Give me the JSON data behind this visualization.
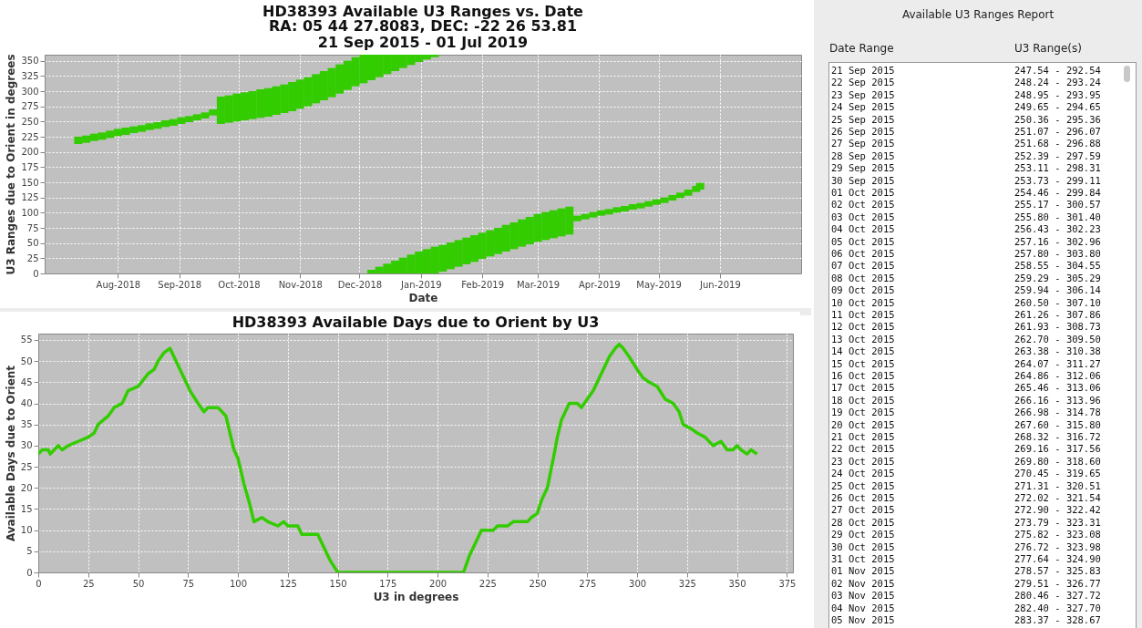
{
  "chart_data": [
    {
      "type": "bar",
      "title": "HD38393 Available U3 Ranges vs. Date",
      "subtitle": "RA: 05 44 27.8083,  DEC: -22 26 53.81\n21 Sep 2015 - 01 Jul 2019",
      "xlabel": "Date",
      "ylabel": "U3 Ranges due to Orient in degrees",
      "xlim": [
        "2018-06-25",
        "2019-07-12"
      ],
      "xticks": [
        {
          "value": "2018-08-01",
          "label": "Aug-2018"
        },
        {
          "value": "2018-09-01",
          "label": "Sep-2018"
        },
        {
          "value": "2018-10-01",
          "label": "Oct-2018"
        },
        {
          "value": "2018-11-01",
          "label": "Nov-2018"
        },
        {
          "value": "2018-12-01",
          "label": "Dec-2018"
        },
        {
          "value": "2019-01-01",
          "label": "Jan-2019"
        },
        {
          "value": "2019-02-01",
          "label": "Feb-2019"
        },
        {
          "value": "2019-03-01",
          "label": "Mar-2019"
        },
        {
          "value": "2019-04-01",
          "label": "Apr-2019"
        },
        {
          "value": "2019-05-01",
          "label": "May-2019"
        },
        {
          "value": "2019-06-01",
          "label": "Jun-2019"
        }
      ],
      "ylim": [
        0,
        360
      ],
      "yticks": [
        0,
        25,
        50,
        75,
        100,
        125,
        150,
        175,
        200,
        225,
        250,
        275,
        300,
        325,
        350
      ],
      "grid": true,
      "series": [
        {
          "color": "#33cc00",
          "x": [
            "2018-07-12",
            "2018-07-16",
            "2018-07-20",
            "2018-07-24",
            "2018-07-28",
            "2018-08-01",
            "2018-08-05",
            "2018-08-09",
            "2018-08-13",
            "2018-08-17",
            "2018-08-21",
            "2018-08-25",
            "2018-08-29",
            "2018-09-02",
            "2018-09-06",
            "2018-09-10",
            "2018-09-14",
            "2018-09-18",
            "2018-09-22",
            "2018-09-26",
            "2018-09-30",
            "2018-10-04",
            "2018-10-08",
            "2018-10-12",
            "2018-10-16",
            "2018-10-20",
            "2018-10-24",
            "2018-10-28",
            "2018-11-01",
            "2018-11-05",
            "2018-11-09",
            "2018-11-13",
            "2018-11-17",
            "2018-11-21",
            "2018-11-25",
            "2018-11-29",
            "2018-12-03",
            "2018-12-07",
            "2018-12-11",
            "2018-12-15",
            "2018-12-19",
            "2018-12-23",
            "2018-12-27",
            "2018-12-31",
            "2019-01-04",
            "2019-01-08"
          ],
          "base": [
            213,
            215,
            218,
            220,
            223,
            226,
            228,
            231,
            233,
            236,
            238,
            241,
            243,
            246,
            249,
            252,
            255,
            260,
            246,
            248,
            250,
            252,
            254,
            256,
            258,
            261,
            264,
            267,
            271,
            275,
            280,
            285,
            290,
            296,
            302,
            308,
            313,
            318,
            323,
            328,
            333,
            338,
            343,
            348,
            352,
            356
          ],
          "values": [
            12,
            12,
            12,
            12,
            12,
            12,
            12,
            11,
            11,
            11,
            11,
            11,
            11,
            11,
            10,
            10,
            10,
            10,
            45,
            45,
            46,
            46,
            46,
            47,
            47,
            47,
            47,
            48,
            48,
            48,
            48,
            48,
            48,
            48,
            48,
            48,
            47,
            42,
            37,
            32,
            27,
            22,
            17,
            12,
            8,
            4
          ]
        },
        {
          "color": "#33cc00",
          "x": [
            "2018-12-07",
            "2018-12-11",
            "2018-12-15",
            "2018-12-19",
            "2018-12-23",
            "2018-12-27",
            "2018-12-31",
            "2019-01-04",
            "2019-01-08",
            "2019-01-12",
            "2019-01-16",
            "2019-01-20",
            "2019-01-24",
            "2019-01-28",
            "2019-02-01",
            "2019-02-05",
            "2019-02-09",
            "2019-02-13",
            "2019-02-17",
            "2019-02-21",
            "2019-02-25",
            "2019-03-01",
            "2019-03-05",
            "2019-03-09",
            "2019-03-13",
            "2019-03-17",
            "2019-03-21",
            "2019-03-25",
            "2019-03-29",
            "2019-04-02",
            "2019-04-06",
            "2019-04-10",
            "2019-04-14",
            "2019-04-18",
            "2019-04-22",
            "2019-04-26",
            "2019-04-30",
            "2019-05-04",
            "2019-05-08",
            "2019-05-12",
            "2019-05-16",
            "2019-05-20",
            "2019-05-22"
          ],
          "base": [
            0,
            0,
            0,
            0,
            0,
            0,
            0,
            0,
            0,
            3,
            7,
            11,
            15,
            19,
            24,
            28,
            32,
            36,
            40,
            44,
            48,
            52,
            55,
            58,
            61,
            64,
            86,
            89,
            92,
            95,
            97,
            100,
            102,
            105,
            107,
            110,
            113,
            116,
            120,
            124,
            128,
            134,
            138
          ],
          "values": [
            6,
            11,
            16,
            21,
            26,
            31,
            36,
            40,
            44,
            44,
            44,
            44,
            44,
            44,
            43,
            43,
            43,
            44,
            44,
            45,
            45,
            46,
            46,
            46,
            46,
            46,
            9,
            9,
            9,
            9,
            9,
            9,
            9,
            9,
            9,
            9,
            9,
            9,
            9,
            9,
            10,
            10,
            11
          ]
        }
      ]
    },
    {
      "type": "line",
      "title": "HD38393 Available Days due to Orient by U3",
      "xlabel": "U3 in degrees",
      "ylabel": "Available Days due to Orient",
      "xlim": [
        0,
        378
      ],
      "xticks": [
        0,
        25,
        50,
        75,
        100,
        125,
        150,
        175,
        200,
        225,
        250,
        275,
        300,
        325,
        350,
        375
      ],
      "ylim": [
        0,
        56.5
      ],
      "yticks": [
        0,
        5,
        10,
        15,
        20,
        25,
        30,
        35,
        40,
        45,
        50,
        55
      ],
      "grid": true,
      "series": [
        {
          "color": "#33cc00",
          "x": [
            0,
            2,
            5,
            6,
            8,
            10,
            12,
            15,
            20,
            25,
            28,
            30,
            35,
            38,
            42,
            45,
            50,
            55,
            58,
            60,
            63,
            66,
            68,
            72,
            76,
            80,
            83,
            85,
            90,
            92,
            94,
            96,
            98,
            100,
            103,
            106,
            108,
            112,
            115,
            120,
            123,
            125,
            130,
            132,
            140,
            143,
            146,
            150,
            213,
            216,
            220,
            222,
            228,
            230,
            235,
            238,
            245,
            247,
            250,
            252,
            255,
            258,
            260,
            262,
            264,
            266,
            270,
            272,
            275,
            278,
            280,
            283,
            286,
            289,
            291,
            293,
            296,
            300,
            303,
            306,
            310,
            314,
            318,
            321,
            323,
            327,
            330,
            334,
            338,
            342,
            345,
            348,
            350,
            352,
            355,
            357,
            360
          ],
          "values": [
            28,
            29,
            29,
            28,
            29,
            30,
            29,
            30,
            31,
            32,
            33,
            35,
            37,
            39,
            40,
            43,
            44,
            47,
            48,
            50,
            52,
            53,
            51,
            47,
            43,
            40,
            38,
            39,
            39,
            38,
            37,
            33,
            29,
            27,
            21,
            16,
            12,
            13,
            12,
            11,
            12,
            11,
            11,
            9,
            9,
            6,
            3,
            0,
            0,
            4,
            8,
            10,
            10,
            11,
            11,
            12,
            12,
            13,
            14,
            17,
            20,
            27,
            32,
            36,
            38,
            40,
            40,
            39,
            41,
            43,
            45,
            48,
            51,
            53,
            54,
            53,
            51,
            48,
            46,
            45,
            44,
            41,
            40,
            38,
            35,
            34,
            33,
            32,
            30,
            31,
            29,
            29,
            30,
            29,
            28,
            29,
            28
          ]
        }
      ]
    },
    {
      "type": "other",
      "title": "Available U3 Ranges Report",
      "annotations": [
        "Date Range",
        "U3 Range(s)",
        "21 Sep 2015",
        "247.54 - 292.54",
        "22 Sep 2015",
        "248.24 - 293.24",
        "23 Sep 2015",
        "248.95 - 293.95",
        "24 Sep 2015",
        "249.65 - 294.65",
        "25 Sep 2015",
        "250.36 - 295.36",
        "26 Sep 2015",
        "251.07 - 296.07",
        "27 Sep 2015",
        "251.68 - 296.88",
        "28 Sep 2015",
        "252.39 - 297.59",
        "29 Sep 2015",
        "253.11 - 298.31",
        "30 Sep 2015",
        "253.73 - 299.11",
        "01 Oct 2015",
        "254.46 - 299.84",
        "02 Oct 2015",
        "255.17 - 300.57",
        "03 Oct 2015",
        "255.80 - 301.40",
        "04 Oct 2015",
        "256.43 - 302.23",
        "05 Oct 2015",
        "257.16 - 302.96",
        "06 Oct 2015",
        "257.80 - 303.80",
        "07 Oct 2015",
        "258.55 - 304.55",
        "08 Oct 2015",
        "259.29 - 305.29",
        "09 Oct 2015",
        "259.94 - 306.14",
        "10 Oct 2015",
        "260.50 - 307.10",
        "11 Oct 2015",
        "261.26 - 307.86",
        "12 Oct 2015",
        "261.93 - 308.73",
        "13 Oct 2015",
        "262.70 - 309.50",
        "14 Oct 2015",
        "263.38 - 310.38",
        "15 Oct 2015",
        "264.07 - 311.27",
        "16 Oct 2015",
        "264.86 - 312.06",
        "17 Oct 2015",
        "265.46 - 313.06",
        "18 Oct 2015",
        "266.16 - 313.96",
        "19 Oct 2015",
        "266.98 - 314.78",
        "20 Oct 2015",
        "267.60 - 315.80",
        "21 Oct 2015",
        "268.32 - 316.72",
        "22 Oct 2015",
        "269.16 - 317.56",
        "23 Oct 2015",
        "269.80 - 318.60",
        "24 Oct 2015",
        "270.45 - 319.65",
        "25 Oct 2015",
        "271.31 - 320.51",
        "26 Oct 2015",
        "272.02 - 321.54",
        "27 Oct 2015",
        "272.90 - 322.42",
        "28 Oct 2015",
        "273.79 - 323.31",
        "29 Oct 2015",
        "275.82 - 323.08",
        "30 Oct 2015",
        "276.72 - 323.98",
        "31 Oct 2015",
        "277.64 - 324.90",
        "01 Nov 2015",
        "278.57 - 325.83",
        "02 Nov 2015",
        "279.51 - 326.77",
        "03 Nov 2015",
        "280.46 - 327.72",
        "04 Nov 2015",
        "282.40 - 327.70",
        "05 Nov 2015",
        "283.37 - 328.67"
      ]
    }
  ]
}
